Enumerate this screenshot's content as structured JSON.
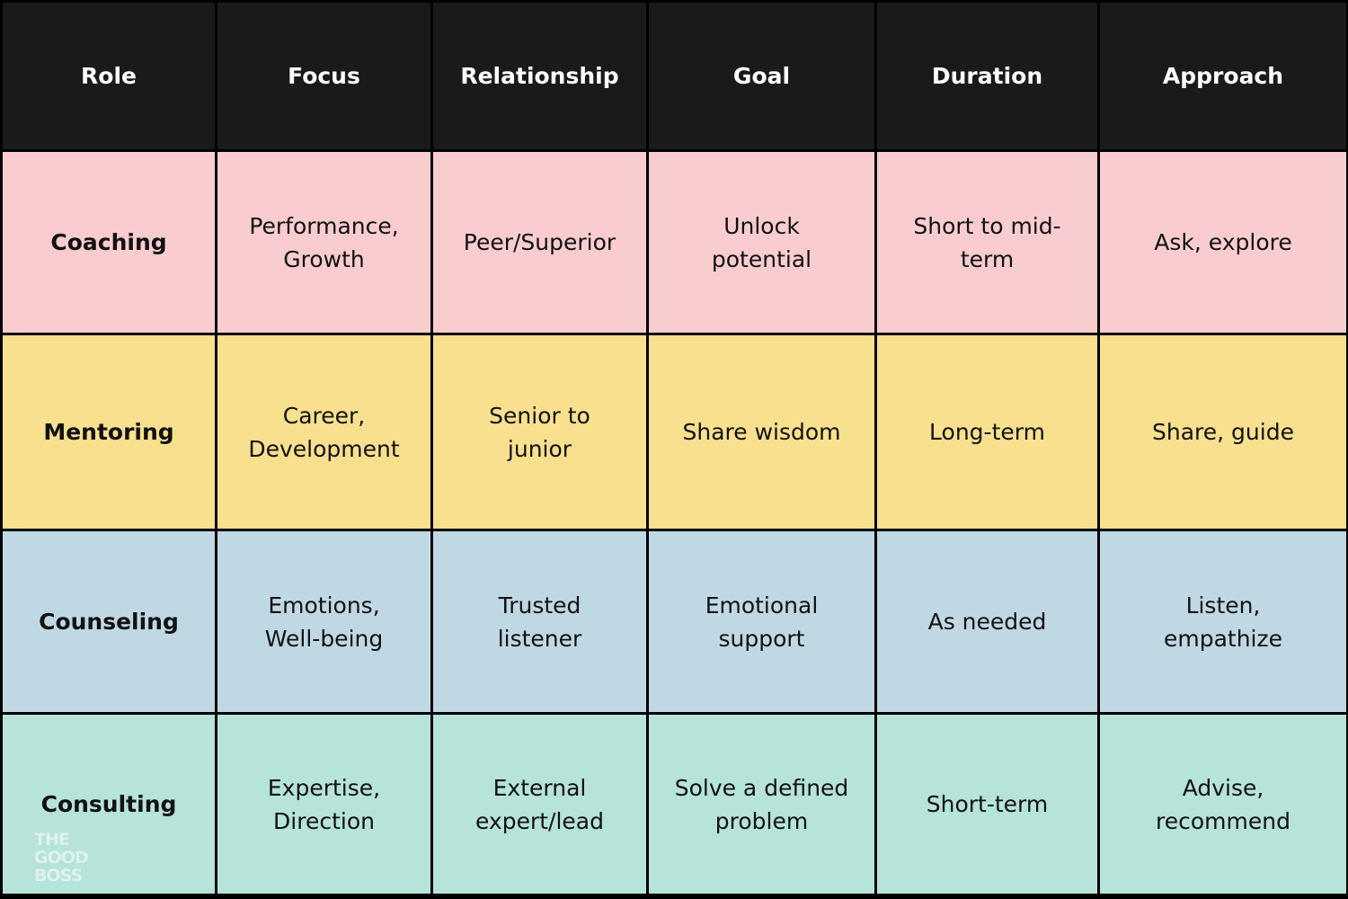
{
  "table": {
    "header": [
      "Role",
      "Focus",
      "Relationship",
      "Goal",
      "Duration",
      "Approach"
    ],
    "rows": [
      [
        "Coaching",
        "Performance, Growth",
        "Peer/Superior",
        "Unlock potential",
        "Short to mid-term",
        "Ask, explore"
      ],
      [
        "Mentoring",
        "Career, Development",
        "Senior to junior",
        "Share wisdom",
        "Long-term",
        "Share, guide"
      ],
      [
        "Counseling",
        "Emotions, Well-being",
        "Trusted listener",
        "Emotional support",
        "As needed",
        "Listen, empathize"
      ],
      [
        "Consulting",
        "Expertise, Direction",
        "External expert/lead",
        "Solve a defined problem",
        "Short-term",
        "Advise, recommend"
      ]
    ]
  },
  "watermark": [
    "THE",
    "GOOD",
    "BOSS"
  ]
}
